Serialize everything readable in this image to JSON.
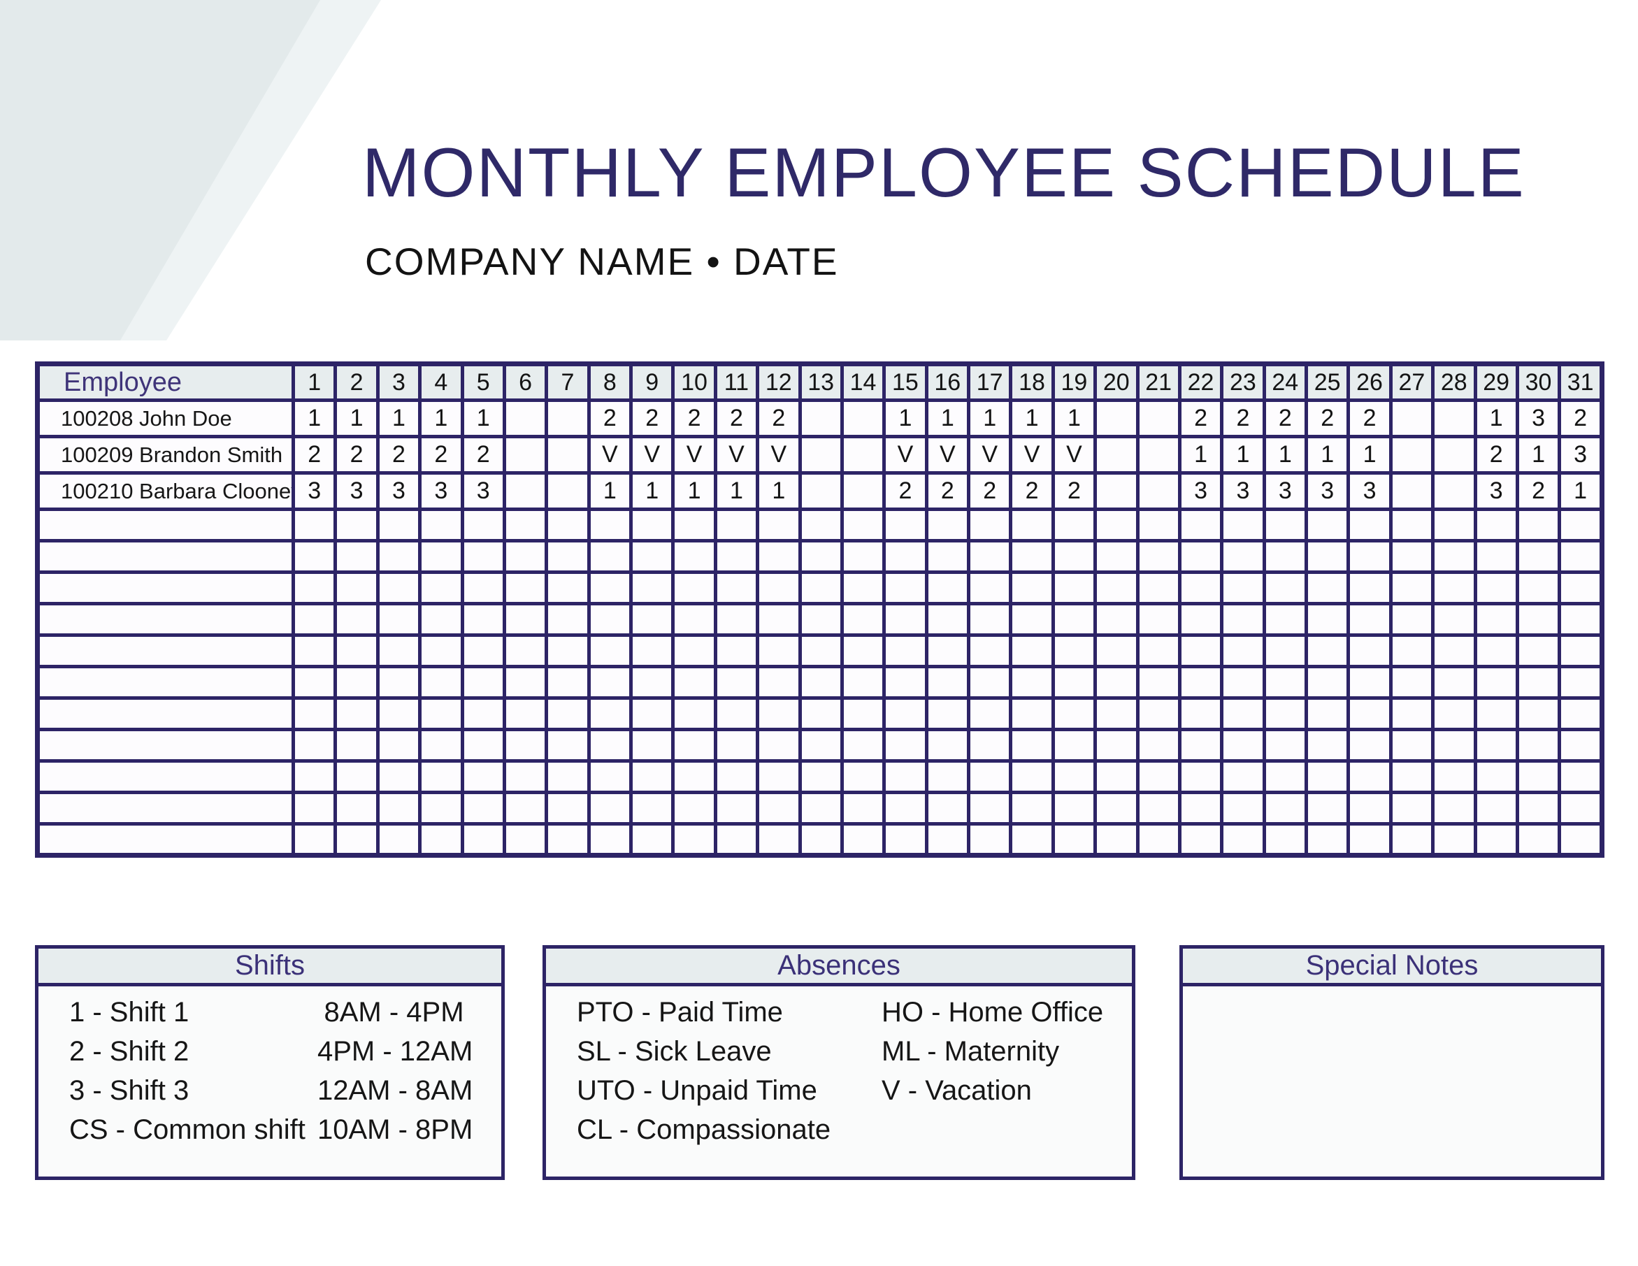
{
  "page": {
    "title": "MONTHLY EMPLOYEE SCHEDULE",
    "subtitle": "COMPANY NAME • DATE"
  },
  "schedule_table": {
    "employee_header": "Employee",
    "days": [
      "1",
      "2",
      "3",
      "4",
      "5",
      "6",
      "7",
      "8",
      "9",
      "10",
      "11",
      "12",
      "13",
      "14",
      "15",
      "16",
      "17",
      "18",
      "19",
      "20",
      "21",
      "22",
      "23",
      "24",
      "25",
      "26",
      "27",
      "28",
      "29",
      "30",
      "31"
    ],
    "employees": [
      {
        "id_name": "100208 John Doe",
        "values": [
          "1",
          "1",
          "1",
          "1",
          "1",
          "",
          "",
          "2",
          "2",
          "2",
          "2",
          "2",
          "",
          "",
          "1",
          "1",
          "1",
          "1",
          "1",
          "",
          "",
          "2",
          "2",
          "2",
          "2",
          "2",
          "",
          "",
          "1",
          "3",
          "2"
        ]
      },
      {
        "id_name": "100209 Brandon Smith",
        "values": [
          "2",
          "2",
          "2",
          "2",
          "2",
          "",
          "",
          "V",
          "V",
          "V",
          "V",
          "V",
          "",
          "",
          "V",
          "V",
          "V",
          "V",
          "V",
          "",
          "",
          "1",
          "1",
          "1",
          "1",
          "1",
          "",
          "",
          "2",
          "1",
          "3"
        ]
      },
      {
        "id_name": "100210 Barbara Clooney",
        "values": [
          "3",
          "3",
          "3",
          "3",
          "3",
          "",
          "",
          "1",
          "1",
          "1",
          "1",
          "1",
          "",
          "",
          "2",
          "2",
          "2",
          "2",
          "2",
          "",
          "",
          "3",
          "3",
          "3",
          "3",
          "3",
          "",
          "",
          "3",
          "2",
          "1"
        ]
      }
    ],
    "empty_row_count": 11
  },
  "legend": {
    "shifts": {
      "title": "Shifts",
      "entries": [
        {
          "code": "1 - Shift 1",
          "time": "8AM - 4PM"
        },
        {
          "code": "2 - Shift 2",
          "time": "4PM - 12AM"
        },
        {
          "code": "3 - Shift 3",
          "time": "12AM - 8AM"
        },
        {
          "code": "CS - Common shift",
          "time": "10AM - 8PM"
        }
      ]
    },
    "absences": {
      "title": "Absences",
      "column1": [
        "PTO - Paid Time",
        "SL - Sick Leave",
        "UTO - Unpaid Time",
        "CL - Compassionate"
      ],
      "column2": [
        "HO - Home Office",
        "ML - Maternity",
        "V - Vacation"
      ]
    },
    "special_notes": {
      "title": "Special Notes"
    }
  },
  "colors": {
    "border": "#2d2466",
    "title_text": "#2f2968",
    "header_fill": "#e7edee",
    "corner_shape": "#e3eaeb",
    "corner_shape_light": "#eef3f4",
    "cell_fill": "#fdfcfe"
  }
}
